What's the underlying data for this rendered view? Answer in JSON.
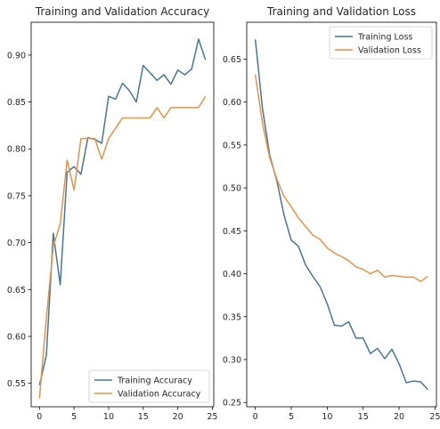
{
  "colors": {
    "train": "#4a7593",
    "val": "#e39449"
  },
  "chart_data": [
    {
      "type": "line",
      "title": "Training and Validation Accuracy",
      "xlabel": "",
      "ylabel": "",
      "xlim": [
        -1.2,
        25.2
      ],
      "ylim": [
        0.525,
        0.935
      ],
      "xticks": [
        0,
        5,
        10,
        15,
        20,
        25
      ],
      "yticks": [
        0.55,
        0.6,
        0.65,
        0.7,
        0.75,
        0.8,
        0.85,
        0.9
      ],
      "ytick_labels": [
        "0.55",
        "0.60",
        "0.65",
        "0.70",
        "0.75",
        "0.80",
        "0.85",
        "0.90"
      ],
      "grid": false,
      "legend_position": "bottom-right",
      "x": [
        0,
        1,
        2,
        3,
        4,
        5,
        6,
        7,
        8,
        9,
        10,
        11,
        12,
        13,
        14,
        15,
        16,
        17,
        18,
        19,
        20,
        21,
        22,
        23,
        24
      ],
      "series": [
        {
          "name": "Training Accuracy",
          "color": "train",
          "values": [
            0.548,
            0.58,
            0.71,
            0.655,
            0.775,
            0.781,
            0.773,
            0.812,
            0.81,
            0.806,
            0.856,
            0.853,
            0.87,
            0.862,
            0.85,
            0.889,
            0.881,
            0.873,
            0.879,
            0.869,
            0.884,
            0.879,
            0.885,
            0.917,
            0.895
          ]
        },
        {
          "name": "Validation Accuracy",
          "color": "val",
          "values": [
            0.534,
            0.62,
            0.696,
            0.72,
            0.788,
            0.756,
            0.811,
            0.811,
            0.811,
            0.789,
            0.811,
            0.822,
            0.833,
            0.833,
            0.833,
            0.833,
            0.833,
            0.844,
            0.833,
            0.844,
            0.844,
            0.844,
            0.844,
            0.844,
            0.856
          ]
        }
      ]
    },
    {
      "type": "line",
      "title": "Training and Validation Loss",
      "xlabel": "",
      "ylabel": "",
      "xlim": [
        -1.2,
        25.2
      ],
      "ylim": [
        0.245,
        0.693
      ],
      "xticks": [
        0,
        5,
        10,
        15,
        20,
        25
      ],
      "yticks": [
        0.25,
        0.3,
        0.35,
        0.4,
        0.45,
        0.5,
        0.55,
        0.6,
        0.65
      ],
      "ytick_labels": [
        "0.25",
        "0.30",
        "0.35",
        "0.40",
        "0.45",
        "0.50",
        "0.55",
        "0.60",
        "0.65"
      ],
      "grid": false,
      "legend_position": "top-right",
      "x": [
        0,
        1,
        2,
        3,
        4,
        5,
        6,
        7,
        8,
        9,
        10,
        11,
        12,
        13,
        14,
        15,
        16,
        17,
        18,
        19,
        20,
        21,
        22,
        23,
        24
      ],
      "series": [
        {
          "name": "Training Loss",
          "color": "train",
          "values": [
            0.673,
            0.592,
            0.538,
            0.508,
            0.468,
            0.439,
            0.432,
            0.41,
            0.397,
            0.385,
            0.365,
            0.34,
            0.339,
            0.344,
            0.325,
            0.325,
            0.307,
            0.313,
            0.301,
            0.312,
            0.295,
            0.273,
            0.275,
            0.274,
            0.265
          ]
        },
        {
          "name": "Validation Loss",
          "color": "val",
          "values": [
            0.632,
            0.575,
            0.535,
            0.51,
            0.49,
            0.478,
            0.465,
            0.455,
            0.445,
            0.44,
            0.43,
            0.424,
            0.42,
            0.415,
            0.408,
            0.405,
            0.4,
            0.404,
            0.396,
            0.398,
            0.397,
            0.396,
            0.396,
            0.391,
            0.397
          ]
        }
      ]
    }
  ]
}
